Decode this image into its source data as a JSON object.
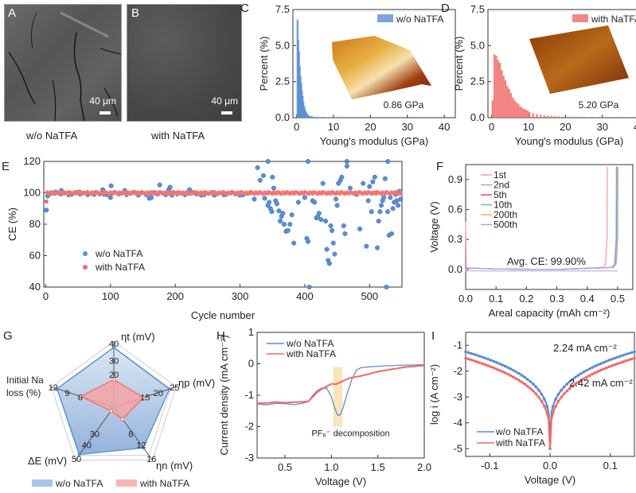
{
  "figure": {
    "panel_labels": [
      "A",
      "B",
      "C",
      "D",
      "E",
      "F",
      "G",
      "H",
      "I"
    ]
  },
  "panelA": {
    "label": "A",
    "caption": "w/o NaTFA",
    "scale_bar": "40 μm"
  },
  "panelB": {
    "label": "B",
    "caption": "with NaTFA",
    "scale_bar": "40 μm"
  },
  "colors": {
    "blue": "#5b8fcf",
    "red": "#f06a6a",
    "blue_fill": "#a9c4e6",
    "red_fill": "#f5a5a5",
    "highlight": "#f7dfa8"
  },
  "chart_data": [
    {
      "id": "C",
      "type": "bar",
      "title": "",
      "legend": [
        "w/o NaTFA"
      ],
      "legend_position": "top-right",
      "xlabel": "Young's modulus (GPa)",
      "ylabel": "Percent (%)",
      "xlim": [
        -1,
        43
      ],
      "ylim": [
        0,
        7.5
      ],
      "xticks": [
        "0",
        "10",
        "20",
        "30",
        "40"
      ],
      "yticks": [
        "0.0",
        "2.5",
        "5.0",
        "7.5"
      ],
      "annotation": "0.86 GPa",
      "x": [
        0,
        0.2,
        0.4,
        0.6,
        0.8,
        1.0,
        1.2,
        1.4,
        1.6,
        1.8,
        2.0,
        2.2,
        2.4,
        2.6,
        2.8,
        3.0,
        3.5,
        4.0,
        5.0,
        6.0,
        8.0,
        10.5
      ],
      "values": [
        6.8,
        5.4,
        4.6,
        3.6,
        2.9,
        2.4,
        1.9,
        1.5,
        1.1,
        0.8,
        0.6,
        0.45,
        0.35,
        0.25,
        0.2,
        0.15,
        0.12,
        0.1,
        0.06,
        0.04,
        0.03,
        0.02
      ]
    },
    {
      "id": "D",
      "type": "bar",
      "title": "",
      "legend": [
        "with NaTFA"
      ],
      "legend_position": "top-right",
      "xlabel": "Young's modulus (GPa)",
      "ylabel": "Percent (%)",
      "xlim": [
        -1,
        43
      ],
      "ylim": [
        0,
        7.5
      ],
      "xticks": [
        "0",
        "10",
        "20",
        "30",
        "40"
      ],
      "yticks": [
        "0.0",
        "2.5",
        "5.0",
        "7.5"
      ],
      "annotation": "5.20 GPa",
      "x": [
        0,
        0.5,
        1,
        1.5,
        2,
        2.5,
        3,
        3.5,
        4,
        4.5,
        5,
        5.5,
        6,
        6.5,
        7,
        7.5,
        8,
        8.5,
        9,
        9.5,
        10,
        11,
        12,
        13,
        14,
        15,
        16,
        17,
        18,
        19,
        20,
        22,
        24,
        26,
        28,
        30,
        33,
        36,
        40,
        42
      ],
      "values": [
        1.2,
        4.4,
        4.3,
        4.0,
        3.8,
        3.3,
        2.9,
        2.6,
        2.2,
        2.0,
        1.7,
        1.4,
        1.2,
        1.05,
        0.95,
        0.8,
        0.7,
        0.6,
        0.55,
        0.5,
        0.4,
        0.3,
        0.25,
        0.2,
        0.17,
        0.14,
        0.12,
        0.1,
        0.08,
        0.07,
        0.06,
        0.05,
        0.04,
        0.03,
        0.03,
        0.02,
        0.02,
        0.02,
        0.01,
        0.02
      ]
    },
    {
      "id": "E",
      "type": "scatter",
      "title": "",
      "xlabel": "Cycle number",
      "ylabel": "CE (%)",
      "xlim": [
        -3,
        550
      ],
      "ylim": [
        40,
        120
      ],
      "xticks": [
        "0",
        "100",
        "200",
        "300",
        "400",
        "500"
      ],
      "yticks": [
        "40",
        "60",
        "80",
        "100",
        "120"
      ],
      "legend_position": "center-left",
      "series": [
        {
          "name": "w/o NaTFA",
          "color": "#5b8fcf",
          "points": [
            [
              1,
              89
            ],
            [
              3,
              98
            ],
            [
              15,
              100.5
            ],
            [
              24,
              101.5
            ],
            [
              40,
              99
            ],
            [
              52,
              100.5
            ],
            [
              75,
              99
            ],
            [
              88,
              102
            ],
            [
              90,
              99
            ],
            [
              100,
              97
            ],
            [
              101,
              104.5
            ],
            [
              122,
              101.5
            ],
            [
              143,
              98.5
            ],
            [
              160,
              96.5
            ],
            [
              163,
              97
            ],
            [
              176,
              105
            ],
            [
              190,
              102
            ],
            [
              192,
              103.5
            ],
            [
              195,
              98.5
            ],
            [
              222,
              102
            ],
            [
              240,
              98.5
            ],
            [
              260,
              98.5
            ],
            [
              278,
              99
            ],
            [
              300,
              98.5
            ],
            [
              322,
              96
            ],
            [
              327,
              116
            ],
            [
              331,
              108
            ],
            [
              336,
              111
            ],
            [
              338,
              96.5
            ],
            [
              343,
              92
            ],
            [
              345,
              94
            ],
            [
              347,
              90
            ],
            [
              349,
              88
            ],
            [
              350,
              110
            ],
            [
              352,
              103
            ],
            [
              355,
              95
            ],
            [
              357,
              93
            ],
            [
              360,
              88.5
            ],
            [
              362,
              82
            ],
            [
              364,
              85
            ],
            [
              366,
              87
            ],
            [
              368,
              80
            ],
            [
              371,
              75.5
            ],
            [
              374,
              76
            ],
            [
              377,
              80
            ],
            [
              380,
              86
            ],
            [
              383,
              68
            ],
            [
              390,
              94
            ],
            [
              400,
              97
            ],
            [
              403,
              71
            ],
            [
              405,
              69
            ],
            [
              407,
              40
            ],
            [
              412,
              95
            ],
            [
              415,
              94
            ],
            [
              418,
              84
            ],
            [
              420,
              85
            ],
            [
              422,
              87
            ],
            [
              425,
              83
            ],
            [
              428,
              106
            ],
            [
              432,
              82
            ],
            [
              434,
              64
            ],
            [
              436,
              57
            ],
            [
              438,
              55
            ],
            [
              440,
              79
            ],
            [
              442,
              76
            ],
            [
              444,
              68
            ],
            [
              446,
              61
            ],
            [
              448,
              96
            ],
            [
              450,
              92
            ],
            [
              452,
              106
            ],
            [
              455,
              108
            ],
            [
              457,
              110
            ],
            [
              460,
              79
            ],
            [
              462,
              74
            ],
            [
              465,
              117
            ],
            [
              470,
              103
            ],
            [
              480,
              99
            ],
            [
              485,
              77
            ],
            [
              490,
              106
            ],
            [
              495,
              66
            ],
            [
              498,
              95
            ],
            [
              500,
              104
            ],
            [
              503,
              88
            ],
            [
              505,
              107
            ],
            [
              508,
              110
            ],
            [
              510,
              100
            ],
            [
              512,
              65
            ],
            [
              514,
              82
            ],
            [
              516,
              88
            ],
            [
              518,
              92
            ],
            [
              520,
              95
            ],
            [
              522,
              97
            ],
            [
              524,
              109
            ],
            [
              526,
              40
            ],
            [
              528,
              88
            ],
            [
              530,
              73
            ],
            [
              532,
              97
            ],
            [
              534,
              74
            ],
            [
              536,
              90
            ],
            [
              538,
              94
            ],
            [
              540,
              99
            ],
            [
              542,
              95
            ],
            [
              544,
              92
            ],
            [
              546,
              101
            ],
            [
              548,
              96
            ],
            [
              405,
              121
            ],
            [
              343,
              121
            ],
            [
              465,
              121
            ],
            [
              528,
              121
            ]
          ]
        },
        {
          "name": "with NaTFA",
          "color": "#f06a6a",
          "baseline": 99.9,
          "first_point": [
            1,
            94.5
          ]
        }
      ]
    },
    {
      "id": "F",
      "type": "line",
      "title": "",
      "xlabel": "Areal capacity (mAh cm⁻²)",
      "ylabel": "Voltage (V)",
      "xlim": [
        0,
        0.55
      ],
      "ylim": [
        -0.2,
        1.05
      ],
      "xticks": [
        "0.0",
        "0.1",
        "0.2",
        "0.3",
        "0.4",
        "0.5"
      ],
      "yticks": [
        "0.0",
        "0.3",
        "0.6",
        "0.9"
      ],
      "annotation": "Avg. CE: 99.90%",
      "legend_position": "top-left",
      "series": [
        {
          "name": "1st",
          "color": "#f4a0a0",
          "end_capacity": 0.465
        },
        {
          "name": "2nd",
          "color": "#8fb3dc",
          "end_capacity": 0.495
        },
        {
          "name": "5th",
          "color": "#e05050",
          "end_capacity": 0.497
        },
        {
          "name": "10th",
          "color": "#7ab0b0",
          "end_capacity": 0.497
        },
        {
          "name": "200th",
          "color": "#f2b25a",
          "end_capacity": 0.499
        },
        {
          "name": "500th",
          "color": "#a9a6e0",
          "end_capacity": 0.5
        }
      ]
    },
    {
      "id": "G",
      "type": "radar",
      "title": "",
      "axes": [
        {
          "name": "ηt (mV)",
          "ticks": [
            "20",
            "30",
            "40"
          ],
          "max": 40
        },
        {
          "name": "ηp (mV)",
          "ticks": [
            "15",
            "20",
            "25"
          ],
          "max": 25
        },
        {
          "name": "ηn (mV)",
          "ticks": [
            "8",
            "12",
            "16"
          ],
          "max": 16
        },
        {
          "name": "ΔE (mV)",
          "ticks": [
            "30",
            "40",
            "50"
          ],
          "max": 50
        },
        {
          "name": "Initial Na loss (%)",
          "ticks": [
            "6",
            "9",
            "12"
          ],
          "max": 12
        }
      ],
      "legend_position": "bottom",
      "series": [
        {
          "name": "w/o NaTFA",
          "values": [
            40,
            24.5,
            13.5,
            49,
            12
          ],
          "color": "#5b8fcf"
        },
        {
          "name": "with NaTFA",
          "values": [
            18.5,
            13,
            4,
            4,
            7
          ],
          "color": "#f06a6a"
        }
      ]
    },
    {
      "id": "H",
      "type": "line",
      "title": "",
      "xlabel": "Voltage (V)",
      "ylabel": "Current density (mA cm⁻²)",
      "xlim": [
        0.2,
        2.0
      ],
      "ylim": [
        -3,
        1
      ],
      "xticks": [
        "0.5",
        "1.0",
        "1.5",
        "2.0"
      ],
      "yticks": [
        "-3",
        "-2",
        "-1",
        "0",
        "1"
      ],
      "annotation": "PF₆⁻ decomposition",
      "highlight_range": [
        1.02,
        1.12
      ],
      "legend_position": "top-left",
      "series": [
        {
          "name": "w/o NaTFA",
          "color": "#5b8fcf",
          "x": [
            0.2,
            0.3,
            0.4,
            0.5,
            0.6,
            0.7,
            0.75,
            0.8,
            0.85,
            0.9,
            0.95,
            1.0,
            1.03,
            1.06,
            1.08,
            1.1,
            1.13,
            1.17,
            1.22,
            1.27,
            1.32,
            1.4,
            1.5,
            1.7,
            2.0
          ],
          "y": [
            -1.28,
            -1.31,
            -1.26,
            -1.27,
            -1.3,
            -1.25,
            -1.2,
            -1.0,
            -0.85,
            -0.77,
            -0.78,
            -1.05,
            -1.35,
            -1.6,
            -1.65,
            -1.6,
            -1.35,
            -0.95,
            -0.5,
            -0.2,
            -0.12,
            -0.1,
            -0.08,
            -0.05,
            -0.03
          ]
        },
        {
          "name": "with NaTFA",
          "color": "#f06a6a",
          "x": [
            0.2,
            0.3,
            0.4,
            0.5,
            0.6,
            0.7,
            0.75,
            0.8,
            0.85,
            0.9,
            0.95,
            1.0,
            1.05,
            1.1,
            1.2,
            1.3,
            1.4,
            1.5,
            1.6,
            1.7,
            1.8,
            1.9,
            2.0
          ],
          "y": [
            -1.25,
            -1.25,
            -1.22,
            -1.24,
            -1.22,
            -1.21,
            -1.2,
            -1.05,
            -0.9,
            -0.8,
            -0.72,
            -0.64,
            -0.65,
            -0.58,
            -0.45,
            -0.4,
            -0.33,
            -0.25,
            -0.2,
            -0.15,
            -0.1,
            -0.08,
            -0.05
          ]
        }
      ]
    },
    {
      "id": "I",
      "type": "line",
      "title": "",
      "xlabel": "Voltage (V)",
      "ylabel": "log i (A cm⁻²)",
      "xlim": [
        -0.14,
        0.14
      ],
      "ylim": [
        -5.3,
        -0.5
      ],
      "xticks": [
        "-0.1",
        "0.0",
        "0.1"
      ],
      "yticks": [
        "-5",
        "-4",
        "-3",
        "-2",
        "-1"
      ],
      "annotations": [
        {
          "text": "2.24 mA cm⁻²",
          "color": "#5b8fcf"
        },
        {
          "text": "2.42 mA cm⁻²",
          "color": "#f06a6a"
        }
      ],
      "legend_position": "bottom-left",
      "series": [
        {
          "name": "w/o NaTFA",
          "color": "#5b8fcf",
          "exchange_current": "2.24 mA cm⁻²",
          "edge_value": -1.25,
          "min_value": -4.7
        },
        {
          "name": "with NaTFA",
          "color": "#f06a6a",
          "exchange_current": "2.42 mA cm⁻²",
          "edge_value": -1.5,
          "min_value": -5.0
        }
      ]
    }
  ]
}
